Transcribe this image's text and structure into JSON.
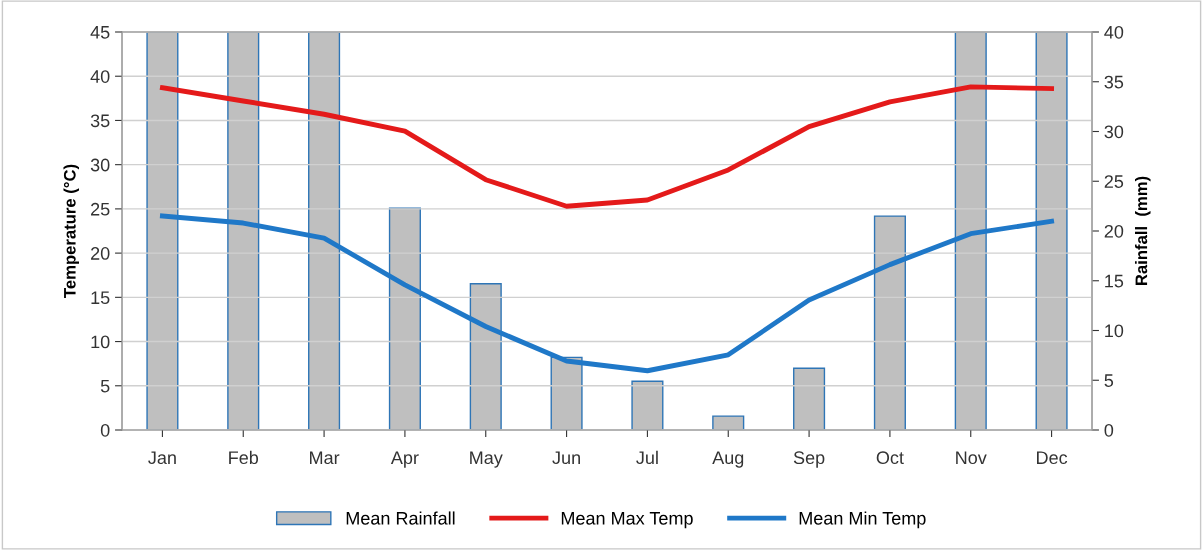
{
  "chart_data": {
    "type": "line",
    "ylabel": "Temperature (°C)",
    "y2label": "Rainfall  (mm)",
    "categories": [
      "Jan",
      "Feb",
      "Mar",
      "Apr",
      "May",
      "Jun",
      "Jul",
      "Aug",
      "Sep",
      "Oct",
      "Nov",
      "Dec"
    ],
    "series": [
      {
        "name": "Mean Rainfall",
        "type": "bar",
        "axis": "y2",
        "color": "#bfbfbf",
        "values": [
          40,
          40,
          40,
          22.3,
          14.7,
          7.3,
          4.9,
          1.4,
          6.2,
          21.5,
          40,
          40
        ]
      },
      {
        "name": "Mean Max Temp",
        "color": "#e41a1a",
        "values": [
          38.7,
          37.2,
          35.7,
          33.8,
          28.3,
          25.3,
          26.0,
          29.4,
          34.3,
          37.1,
          38.8,
          38.6
        ]
      },
      {
        "name": "Mean Min Temp",
        "color": "#1f78c8",
        "values": [
          24.2,
          23.4,
          21.7,
          16.4,
          11.7,
          7.8,
          6.7,
          8.5,
          14.7,
          18.7,
          22.2,
          23.6
        ]
      }
    ],
    "ylim": [
      0,
      45
    ],
    "yticks": [
      0,
      5,
      10,
      15,
      20,
      25,
      30,
      35,
      40,
      45
    ],
    "y2lim": [
      0,
      40
    ],
    "y2ticks": [
      0,
      5,
      10,
      15,
      20,
      25,
      30,
      35,
      40
    ],
    "grid": "y",
    "legend": "bottom",
    "marker": "none",
    "line_style": "solid"
  }
}
